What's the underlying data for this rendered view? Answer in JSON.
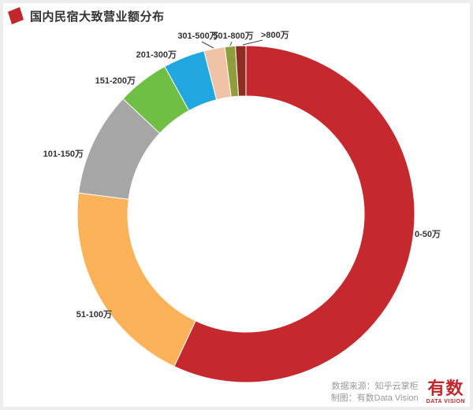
{
  "header": {
    "title": "国内民宿大致营业额分布"
  },
  "chart_data": {
    "type": "pie",
    "subtype": "donut",
    "title": "国内民宿大致营业额分布",
    "categories": [
      "0-50万",
      "51-100万",
      "101-150万",
      "151-200万",
      "201-300万",
      "301-500万",
      "501-800万",
      ">800万"
    ],
    "values": [
      57,
      20,
      10,
      5,
      4,
      2,
      1,
      1
    ],
    "values_unit": "percent (estimated from arc angles)",
    "colors": [
      "#c5282d",
      "#fbb259",
      "#a6a6a6",
      "#6ebf44",
      "#21a7e0",
      "#f1c3a6",
      "#8f9d3a",
      "#8c2e23"
    ],
    "start_angle_deg": 0,
    "direction": "clockwise",
    "donut_hole_ratio": 0.7,
    "legend": "none",
    "label_style": "outside with leader lines"
  },
  "footer": {
    "source": "数据来源：知乎云掌柜",
    "credit": "制图：有数Data Vision",
    "logo_text": "有数",
    "logo_subtext": "DATA VISION"
  },
  "colors": {
    "accent_red": "#c1272d",
    "title_text": "#333333",
    "footer_text": "#999999",
    "label_text": "#333333",
    "background": "#ffffff",
    "frame": "#ededed"
  }
}
